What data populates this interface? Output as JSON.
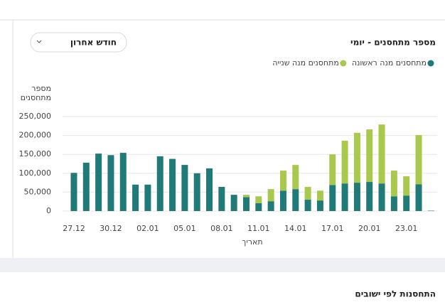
{
  "chart_data": {
    "type": "bar",
    "stacked": true,
    "title": "מספר מתחסנים - יומי",
    "dropdown": "חודש אחרון",
    "ylabel": [
      "מספר",
      "מתחסנים"
    ],
    "xlabel": "תאריך",
    "categories": [
      "27.12",
      null,
      null,
      "30.12",
      null,
      null,
      "02.01",
      null,
      null,
      "05.01",
      null,
      null,
      "08.01",
      null,
      null,
      "11.01",
      null,
      null,
      "14.01",
      null,
      null,
      "17.01",
      null,
      null,
      "20.01",
      null,
      null,
      "23.01",
      null,
      null
    ],
    "series": [
      {
        "name": "מתחסנים מנה ראשונה",
        "color": "#1f7a78",
        "values": [
          101000,
          128000,
          152000,
          148000,
          154000,
          70000,
          70000,
          145000,
          138000,
          122000,
          100000,
          113000,
          64000,
          43000,
          37000,
          21000,
          26000,
          54000,
          58000,
          30000,
          28000,
          69000,
          73000,
          75000,
          77000,
          73000,
          39000,
          41000,
          71000,
          1000
        ]
      },
      {
        "name": "מתחסנים מנה שנייה",
        "color": "#a8c84e",
        "values": [
          0,
          0,
          0,
          0,
          0,
          0,
          0,
          0,
          0,
          0,
          0,
          0,
          0,
          0,
          6000,
          18000,
          32000,
          53000,
          64000,
          34000,
          26000,
          81000,
          113000,
          132000,
          139000,
          156000,
          68000,
          51000,
          130000,
          0
        ]
      }
    ],
    "ylim": [
      0,
      250000
    ],
    "yticks": [
      0,
      {
        "value": 50000,
        "label": "50,000"
      },
      {
        "value": 100000,
        "label": "100,000"
      },
      {
        "value": 150000,
        "label": "150,000"
      },
      {
        "value": 200000,
        "label": "200,000"
      },
      {
        "value": 250000,
        "label": "250,000"
      }
    ],
    "grid": true
  },
  "section": {
    "title": "התחסנות לפי ישובים"
  }
}
